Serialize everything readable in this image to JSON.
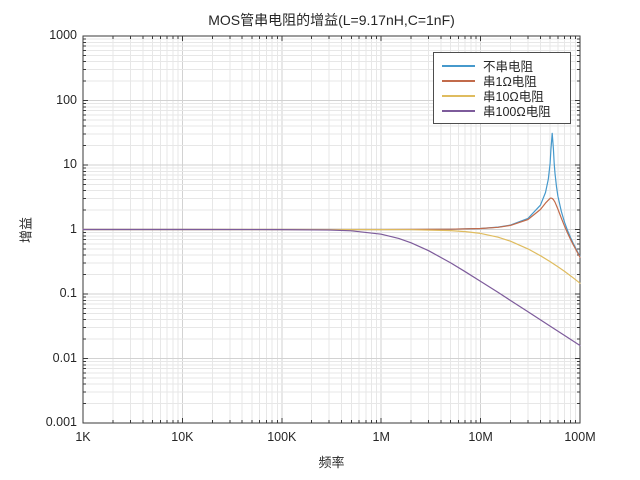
{
  "figure": {
    "title": "MOS管串电阻的增益(L=9.17nH,C=1nF)",
    "xlabel": "频率",
    "ylabel": "增益",
    "background": "#ffffff",
    "axis_color": "#3a3a3a",
    "text_color": "#262626",
    "grid_major": "#d2d2d2",
    "grid_minor": "#e7e7e7",
    "legend_border": "#4d4d4d"
  },
  "axes": {
    "x": {
      "scale": "log",
      "min": 1000,
      "max": 100000000,
      "tick_labels": [
        "1K",
        "10K",
        "100K",
        "1M",
        "10M",
        "100M"
      ]
    },
    "y": {
      "scale": "log",
      "min": 0.001,
      "max": 1000,
      "tick_labels": [
        "1000",
        "100",
        "10",
        "1",
        "0.1",
        "0.01",
        "0.001"
      ]
    }
  },
  "legend": {
    "items": [
      {
        "label": "不串电阻"
      },
      {
        "label": "串1Ω电阻"
      },
      {
        "label": "串10Ω电阻"
      },
      {
        "label": "串100Ω电阻"
      }
    ]
  },
  "chart_data": {
    "type": "line",
    "title": "MOS管串电阻的增益(L=9.17nH,C=1nF)",
    "xlabel": "频率",
    "ylabel": "增益",
    "x_scale": "log",
    "y_scale": "log",
    "xlim": [
      1000,
      100000000
    ],
    "ylim": [
      0.001,
      1000
    ],
    "grid": "on",
    "legend_position": "top-right-inside",
    "inductance": "9.17nH",
    "capacitance": "1nF",
    "resonant_frequency_hz": 52500000,
    "series": [
      {
        "name": "不串电阻",
        "series_resistance_ohm": 0,
        "color": "#4699CC",
        "points": [
          [
            1000,
            1.0
          ],
          [
            10000,
            1.0
          ],
          [
            100000,
            1.0
          ],
          [
            1000000,
            1.0004
          ],
          [
            2000000,
            1.0015
          ],
          [
            5000000,
            1.0091
          ],
          [
            10000000,
            1.038
          ],
          [
            15000000,
            1.089
          ],
          [
            20000000,
            1.169
          ],
          [
            30000000,
            1.484
          ],
          [
            40000000,
            2.38
          ],
          [
            45000000,
            3.75
          ],
          [
            48000000,
            6.0
          ],
          [
            50000000,
            10.6
          ],
          [
            51000000,
            17.2
          ],
          [
            52500000,
            31.0
          ],
          [
            54000000,
            17.9
          ],
          [
            55000000,
            10.5
          ],
          [
            56000000,
            7.4
          ],
          [
            58000000,
            4.6
          ],
          [
            60000000,
            3.3
          ],
          [
            65000000,
            1.89
          ],
          [
            70000000,
            1.29
          ],
          [
            75000000,
            0.96
          ],
          [
            80000000,
            0.76
          ],
          [
            85000000,
            0.62
          ],
          [
            90000000,
            0.52
          ],
          [
            100000000,
            0.38
          ]
        ]
      },
      {
        "name": "串1Ω电阻",
        "series_resistance_ohm": 1,
        "color": "#C26B4B",
        "points": [
          [
            1000,
            1.0
          ],
          [
            100000,
            1.0
          ],
          [
            1000000,
            1.0004
          ],
          [
            5000000,
            1.009
          ],
          [
            10000000,
            1.035
          ],
          [
            15000000,
            1.083
          ],
          [
            20000000,
            1.157
          ],
          [
            30000000,
            1.429
          ],
          [
            40000000,
            2.04
          ],
          [
            45000000,
            2.57
          ],
          [
            50000000,
            3.05
          ],
          [
            51000000,
            3.07
          ],
          [
            52500000,
            3.03
          ],
          [
            54000000,
            2.91
          ],
          [
            56000000,
            2.65
          ],
          [
            60000000,
            2.07
          ],
          [
            65000000,
            1.49
          ],
          [
            70000000,
            1.12
          ],
          [
            75000000,
            0.88
          ],
          [
            80000000,
            0.71
          ],
          [
            85000000,
            0.59
          ],
          [
            90000000,
            0.5
          ],
          [
            100000000,
            0.37
          ]
        ]
      },
      {
        "name": "串10Ω电阻",
        "series_resistance_ohm": 10,
        "color": "#DFBC5F",
        "points": [
          [
            1000,
            1.0
          ],
          [
            100000,
            1.0
          ],
          [
            1000000,
            0.998
          ],
          [
            2000000,
            0.994
          ],
          [
            5000000,
            0.962
          ],
          [
            7000000,
            0.929
          ],
          [
            10000000,
            0.869
          ],
          [
            15000000,
            0.76
          ],
          [
            20000000,
            0.658
          ],
          [
            30000000,
            0.5
          ],
          [
            40000000,
            0.392
          ],
          [
            50000000,
            0.318
          ],
          [
            60000000,
            0.264
          ],
          [
            70000000,
            0.224
          ],
          [
            85000000,
            0.179
          ],
          [
            100000000,
            0.147
          ]
        ]
      },
      {
        "name": "串100Ω电阻",
        "series_resistance_ohm": 100,
        "color": "#7D5B9B",
        "points": [
          [
            1000,
            1.0
          ],
          [
            10000,
            1.0
          ],
          [
            100000,
            0.998
          ],
          [
            300000,
            0.983
          ],
          [
            500000,
            0.954
          ],
          [
            1000000,
            0.847
          ],
          [
            1500000,
            0.728
          ],
          [
            2000000,
            0.623
          ],
          [
            3000000,
            0.469
          ],
          [
            5000000,
            0.304
          ],
          [
            7000000,
            0.222
          ],
          [
            10000000,
            0.157
          ],
          [
            15000000,
            0.106
          ],
          [
            20000000,
            0.0794
          ],
          [
            30000000,
            0.053
          ],
          [
            50000000,
            0.0318
          ],
          [
            70000000,
            0.0227
          ],
          [
            100000000,
            0.0159
          ]
        ]
      }
    ]
  }
}
